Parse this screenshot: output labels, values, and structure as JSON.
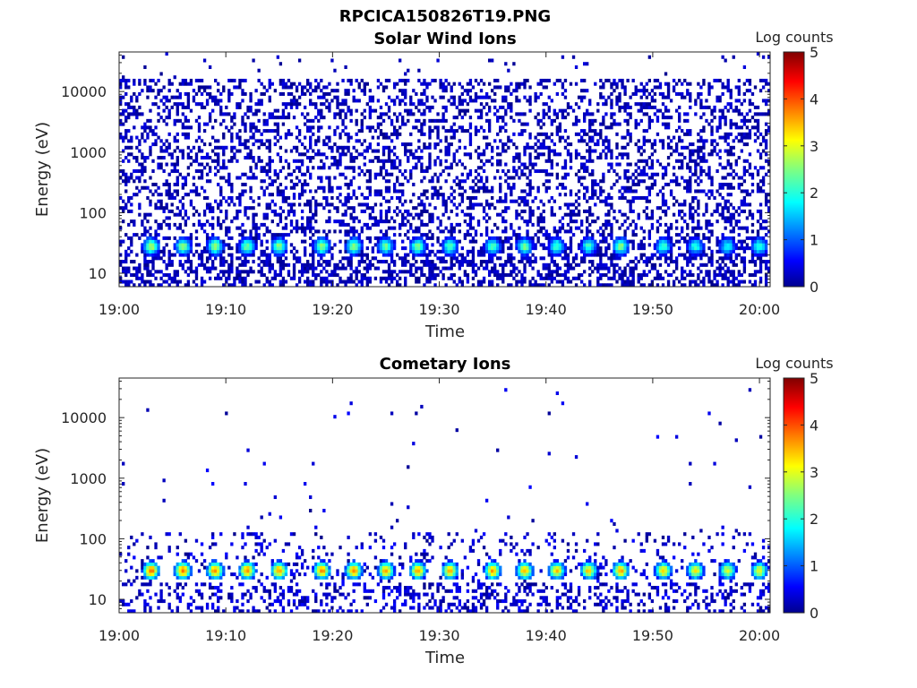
{
  "figure_title": "RPCICA150826T19.PNG",
  "chart_data": [
    {
      "type": "heatmap",
      "title": "Solar Wind Ions",
      "xlabel": "Time",
      "ylabel": "Energy (eV)",
      "x_ticks": [
        "19:00",
        "19:10",
        "19:20",
        "19:30",
        "19:40",
        "19:50",
        "20:00"
      ],
      "xlim": [
        "19:00",
        "20:01"
      ],
      "y_ticks": [
        10,
        100,
        1000,
        10000
      ],
      "y_tick_labels": [
        "10",
        "100",
        "1000",
        "10000"
      ],
      "ylim": [
        6,
        45000
      ],
      "yscale": "log",
      "colorbar": {
        "label": "Log counts",
        "ticks": [
          "0",
          "1",
          "2",
          "3",
          "4",
          "5"
        ],
        "range": [
          0,
          5
        ],
        "colormap": "jet"
      },
      "pulses": [
        {
          "time": "19:03",
          "log_counts": 2.8
        },
        {
          "time": "19:06",
          "log_counts": 2.6
        },
        {
          "time": "19:09",
          "log_counts": 2.7
        },
        {
          "time": "19:12",
          "log_counts": 2.5
        },
        {
          "time": "19:15",
          "log_counts": 2.6
        },
        {
          "time": "19:19",
          "log_counts": 2.7
        },
        {
          "time": "19:22",
          "log_counts": 2.7
        },
        {
          "time": "19:25",
          "log_counts": 2.4
        },
        {
          "time": "19:28",
          "log_counts": 2.5
        },
        {
          "time": "19:31",
          "log_counts": 2.4
        },
        {
          "time": "19:35",
          "log_counts": 2.3
        },
        {
          "time": "19:38",
          "log_counts": 2.5
        },
        {
          "time": "19:41",
          "log_counts": 2.3
        },
        {
          "time": "19:44",
          "log_counts": 2.2
        },
        {
          "time": "19:47",
          "log_counts": 2.6
        },
        {
          "time": "19:51",
          "log_counts": 2.2
        },
        {
          "time": "19:54",
          "log_counts": 2.1
        },
        {
          "time": "19:57",
          "log_counts": 2.0
        },
        {
          "time": "20:00",
          "log_counts": 2.2
        }
      ],
      "pulse_energy_eV": 28,
      "background_energy_range_eV": [
        6,
        16000
      ]
    },
    {
      "type": "heatmap",
      "title": "Cometary Ions",
      "xlabel": "Time",
      "ylabel": "Energy (eV)",
      "x_ticks": [
        "19:00",
        "19:10",
        "19:20",
        "19:30",
        "19:40",
        "19:50",
        "20:00"
      ],
      "xlim": [
        "19:00",
        "20:01"
      ],
      "y_ticks": [
        10,
        100,
        1000,
        10000
      ],
      "y_tick_labels": [
        "10",
        "100",
        "1000",
        "10000"
      ],
      "ylim": [
        6,
        45000
      ],
      "yscale": "log",
      "colorbar": {
        "label": "Log counts",
        "ticks": [
          "0",
          "1",
          "2",
          "3",
          "4",
          "5"
        ],
        "range": [
          0,
          5
        ],
        "colormap": "jet"
      },
      "pulses": [
        {
          "time": "19:03",
          "log_counts": 3.9
        },
        {
          "time": "19:06",
          "log_counts": 3.9
        },
        {
          "time": "19:09",
          "log_counts": 3.8
        },
        {
          "time": "19:12",
          "log_counts": 3.7
        },
        {
          "time": "19:15",
          "log_counts": 3.7
        },
        {
          "time": "19:19",
          "log_counts": 3.8
        },
        {
          "time": "19:22",
          "log_counts": 3.8
        },
        {
          "time": "19:25",
          "log_counts": 3.6
        },
        {
          "time": "19:28",
          "log_counts": 3.6
        },
        {
          "time": "19:31",
          "log_counts": 3.6
        },
        {
          "time": "19:35",
          "log_counts": 3.7
        },
        {
          "time": "19:38",
          "log_counts": 3.6
        },
        {
          "time": "19:41",
          "log_counts": 3.4
        },
        {
          "time": "19:44",
          "log_counts": 3.4
        },
        {
          "time": "19:47",
          "log_counts": 3.6
        },
        {
          "time": "19:51",
          "log_counts": 3.4
        },
        {
          "time": "19:54",
          "log_counts": 3.2
        },
        {
          "time": "19:57",
          "log_counts": 3.0
        },
        {
          "time": "20:00",
          "log_counts": 3.1
        }
      ],
      "pulse_energy_eV": 30,
      "background_energy_range_eV": [
        6,
        130
      ]
    }
  ]
}
